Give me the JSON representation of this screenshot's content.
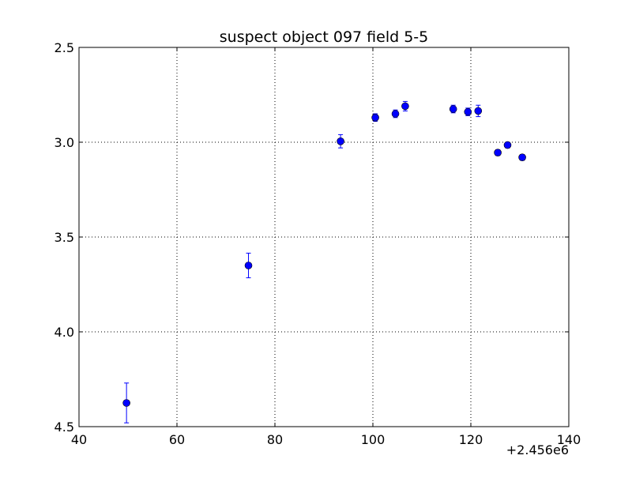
{
  "chart_data": {
    "type": "scatter",
    "title": "suspect object 097 field 5-5",
    "xlabel": "",
    "ylabel": "",
    "x_offset_label": "+2.456e6",
    "xlim": [
      40,
      140
    ],
    "ylim": [
      4.5,
      2.5
    ],
    "y_inverted": true,
    "grid": true,
    "legend": "none",
    "x_ticks": [
      40,
      60,
      80,
      100,
      120,
      140
    ],
    "x_tick_labels": [
      "40",
      "60",
      "80",
      "100",
      "120",
      "140"
    ],
    "y_ticks": [
      2.5,
      3.0,
      3.5,
      4.0,
      4.5
    ],
    "y_tick_labels": [
      "2.5",
      "3.0",
      "3.5",
      "4.0",
      "4.5"
    ],
    "marker_color": "#0000ff",
    "series": [
      {
        "points": [
          {
            "x": 49.7,
            "y": 4.375,
            "err": 0.105
          },
          {
            "x": 74.6,
            "y": 3.65,
            "err": 0.065
          },
          {
            "x": 93.4,
            "y": 2.995,
            "err": 0.035
          },
          {
            "x": 100.5,
            "y": 2.87,
            "err": 0.02
          },
          {
            "x": 104.6,
            "y": 2.85,
            "err": 0.02
          },
          {
            "x": 106.6,
            "y": 2.81,
            "err": 0.025
          },
          {
            "x": 116.4,
            "y": 2.825,
            "err": 0.02
          },
          {
            "x": 119.4,
            "y": 2.84,
            "err": 0.02
          },
          {
            "x": 121.5,
            "y": 2.835,
            "err": 0.03
          },
          {
            "x": 125.5,
            "y": 3.055,
            "err": 0.015
          },
          {
            "x": 127.5,
            "y": 3.015,
            "err": 0.015
          },
          {
            "x": 130.5,
            "y": 3.08,
            "err": 0.015
          }
        ]
      }
    ]
  }
}
